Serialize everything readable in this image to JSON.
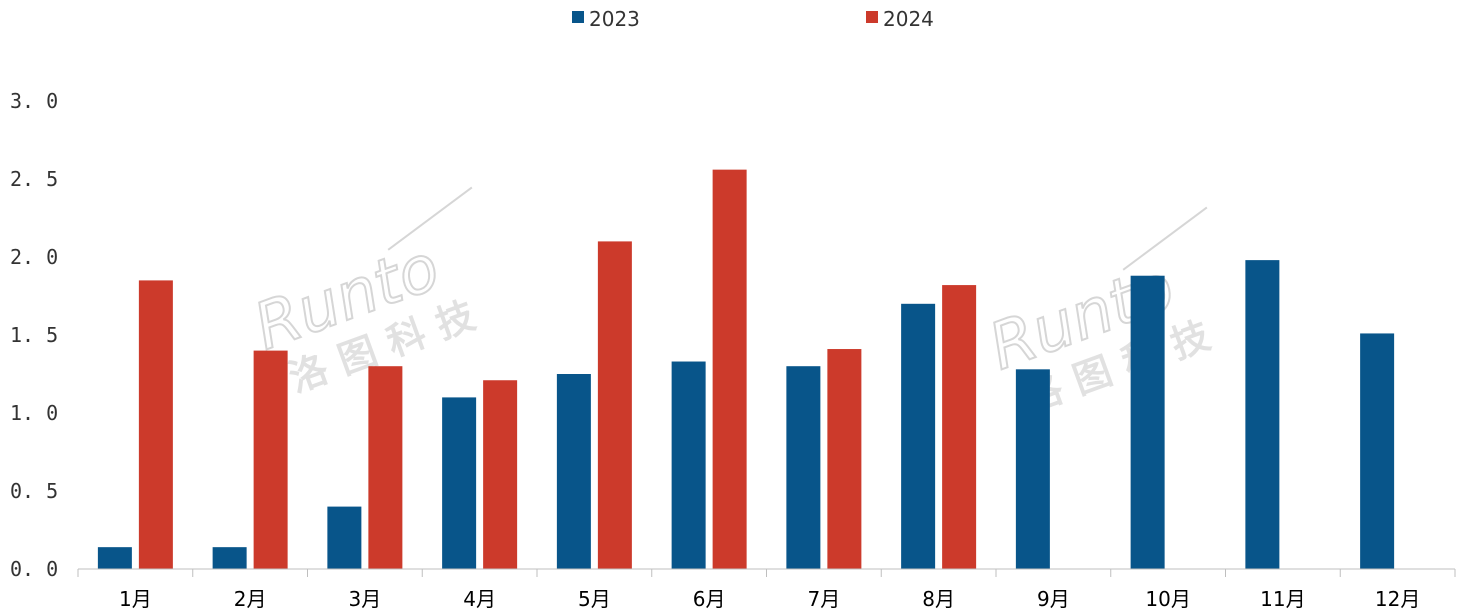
{
  "chart_data": {
    "type": "bar",
    "categories": [
      "1月",
      "2月",
      "3月",
      "4月",
      "5月",
      "6月",
      "7月",
      "8月",
      "9月",
      "10月",
      "11月",
      "12月"
    ],
    "series": [
      {
        "name": "2023",
        "color": "#08558a",
        "values": [
          0.14,
          0.14,
          0.4,
          1.1,
          1.25,
          1.33,
          1.3,
          1.7,
          1.28,
          1.88,
          1.98,
          1.51
        ]
      },
      {
        "name": "2024",
        "color": "#cc3a2b",
        "values": [
          1.85,
          1.4,
          1.3,
          1.21,
          2.1,
          2.56,
          1.41,
          1.82,
          null,
          null,
          null,
          null
        ]
      }
    ],
    "y_ticks": [
      "0.0",
      "0.5",
      "1.0",
      "1.5",
      "2.0",
      "2.5",
      "3.0"
    ],
    "ylim": [
      0,
      3.0
    ],
    "grid": false,
    "legend_position": "top-center"
  },
  "watermark": {
    "brand": "Runto",
    "company": "洛图科技"
  }
}
